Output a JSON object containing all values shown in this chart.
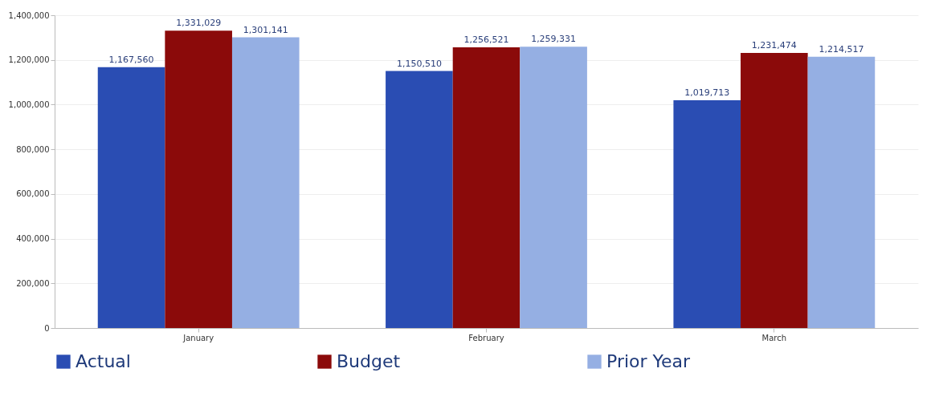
{
  "chart_data": {
    "type": "bar",
    "categories": [
      "January",
      "February",
      "March"
    ],
    "series": [
      {
        "name": "Actual",
        "color": "#2a4db3",
        "values": [
          1167560,
          1150510,
          1019713
        ],
        "value_labels": [
          "1,167,560",
          "1,150,510",
          "1,019,713"
        ]
      },
      {
        "name": "Budget",
        "color": "#8b0a0a",
        "values": [
          1331029,
          1256521,
          1231474
        ],
        "value_labels": [
          "1,331,029",
          "1,256,521",
          "1,231,474"
        ]
      },
      {
        "name": "Prior Year",
        "color": "#95afe3",
        "values": [
          1301141,
          1259331,
          1214517
        ],
        "value_labels": [
          "1,301,141",
          "1,259,331",
          "1,214,517"
        ]
      }
    ],
    "ylim": [
      0,
      1400000
    ],
    "yticks": [
      0,
      {
        "value": 200000,
        "label": "200,000"
      },
      {
        "value": 400000,
        "label": "400,000"
      },
      {
        "value": 600000,
        "label": "600,000"
      },
      {
        "value": 800000,
        "label": "800,000"
      },
      {
        "value": 1000000,
        "label": "1,000,000"
      },
      {
        "value": 1200000,
        "label": "1,200,000"
      },
      {
        "value": 1400000,
        "label": "1,400,000"
      }
    ],
    "grid": "y",
    "legend": "bottom"
  }
}
